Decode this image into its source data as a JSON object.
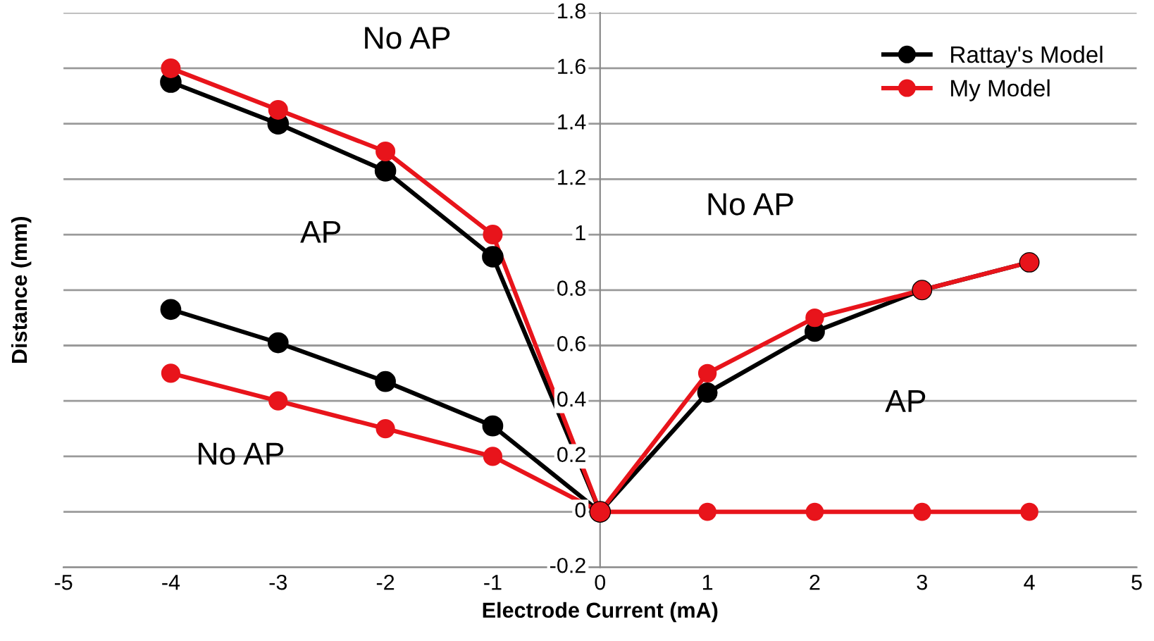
{
  "chart_data": {
    "type": "line",
    "xlabel": "Electrode Current (mA)",
    "ylabel": "Distance (mm)",
    "xlim": [
      -5,
      5
    ],
    "ylim": [
      -0.2,
      1.8
    ],
    "xticks": [
      -5,
      -4,
      -3,
      -2,
      -1,
      0,
      1,
      2,
      3,
      4,
      5
    ],
    "yticks": [
      -0.2,
      0,
      0.2,
      0.4,
      0.6,
      0.8,
      1,
      1.2,
      1.4,
      1.6,
      1.8
    ],
    "grid": "y",
    "legend": "top right",
    "marker": "circle",
    "line_style": "solid",
    "series": [
      {
        "name": "Rattay's Model",
        "color": "#000000",
        "x": [
          -4,
          -3,
          -2,
          -1,
          0
        ],
        "values": [
          1.55,
          1.4,
          1.23,
          0.92,
          0
        ]
      },
      {
        "color": "#000000",
        "x": [
          -4,
          -3,
          -2,
          -1,
          0
        ],
        "values": [
          0.73,
          0.61,
          0.47,
          0.31,
          0
        ]
      },
      {
        "color": "#000000",
        "x": [
          0,
          1,
          2,
          3,
          4
        ],
        "values": [
          0,
          0.43,
          0.65,
          0.8,
          0.9
        ]
      },
      {
        "name": "My Model",
        "color": "#e8141b",
        "x": [
          -4,
          -3,
          -2,
          -1,
          0
        ],
        "values": [
          1.6,
          1.45,
          1.3,
          1.0,
          0
        ]
      },
      {
        "color": "#e8141b",
        "x": [
          -4,
          -3,
          -2,
          -1,
          0
        ],
        "values": [
          0.5,
          0.4,
          0.3,
          0.2,
          0
        ]
      },
      {
        "color": "#e8141b",
        "x": [
          0,
          1,
          2,
          3,
          4
        ],
        "values": [
          0,
          0.5,
          0.7,
          0.8,
          0.9
        ]
      },
      {
        "color": "#e8141b",
        "x": [
          0,
          1,
          2,
          3,
          4
        ],
        "values": [
          0,
          0,
          0,
          0,
          0
        ]
      }
    ],
    "annotations": [
      "No AP",
      "AP",
      "No AP",
      "AP",
      "No AP"
    ]
  }
}
